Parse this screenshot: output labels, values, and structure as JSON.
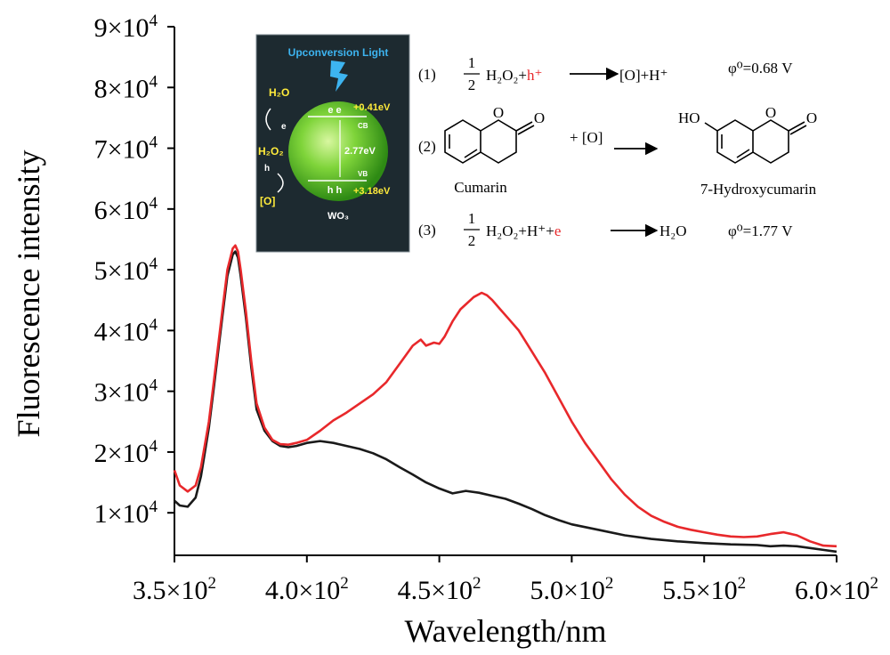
{
  "chart_data": {
    "type": "line",
    "xlabel": "Wavelength/nm",
    "ylabel": "Fluorescence intensity",
    "xlim": [
      350,
      600
    ],
    "ylim": [
      3000,
      90000
    ],
    "x_ticks": [
      350,
      400,
      450,
      500,
      550,
      600
    ],
    "x_tick_labels": [
      {
        "m": "3.5×10",
        "e": "2"
      },
      {
        "m": "4.0×10",
        "e": "2"
      },
      {
        "m": "4.5×10",
        "e": "2"
      },
      {
        "m": "5.0×10",
        "e": "2"
      },
      {
        "m": "5.5×10",
        "e": "2"
      },
      {
        "m": "6.0×10",
        "e": "2"
      }
    ],
    "y_ticks": [
      10000,
      20000,
      30000,
      40000,
      50000,
      60000,
      70000,
      80000,
      90000
    ],
    "y_tick_labels": [
      {
        "m": "1×10",
        "e": "4"
      },
      {
        "m": "2×10",
        "e": "4"
      },
      {
        "m": "3×10",
        "e": "4"
      },
      {
        "m": "4×10",
        "e": "4"
      },
      {
        "m": "5×10",
        "e": "4"
      },
      {
        "m": "6×10",
        "e": "4"
      },
      {
        "m": "7×10",
        "e": "4"
      },
      {
        "m": "8×10",
        "e": "4"
      },
      {
        "m": "9×10",
        "e": "4"
      }
    ],
    "grid": false,
    "series": [
      {
        "color": "#1a1a1a",
        "x": [
          350,
          352,
          355,
          358,
          360,
          363,
          365,
          368,
          370,
          372,
          373,
          374,
          375,
          377,
          379,
          381,
          384,
          387,
          390,
          393,
          396,
          400,
          405,
          410,
          415,
          420,
          425,
          430,
          435,
          440,
          445,
          450,
          455,
          460,
          465,
          470,
          475,
          480,
          485,
          490,
          495,
          500,
          510,
          520,
          530,
          540,
          550,
          560,
          570,
          575,
          580,
          585,
          590,
          595,
          600
        ],
        "y": [
          12000,
          11200,
          11000,
          12500,
          16000,
          24000,
          31000,
          42000,
          49000,
          52500,
          53000,
          52000,
          49000,
          42000,
          34000,
          27000,
          23500,
          21800,
          21000,
          20800,
          21000,
          21500,
          21800,
          21500,
          21000,
          20500,
          19800,
          18800,
          17500,
          16300,
          15000,
          14000,
          13200,
          13600,
          13300,
          12800,
          12300,
          11500,
          10600,
          9600,
          8800,
          8100,
          7200,
          6300,
          5700,
          5300,
          5000,
          4800,
          4700,
          4500,
          4600,
          4500,
          4200,
          3900,
          3600
        ]
      },
      {
        "color": "#e8282b",
        "x": [
          350,
          352,
          355,
          358,
          360,
          363,
          365,
          368,
          370,
          372,
          373,
          374,
          375,
          377,
          379,
          381,
          384,
          387,
          390,
          393,
          396,
          400,
          405,
          410,
          415,
          420,
          425,
          430,
          435,
          440,
          443,
          445,
          448,
          450,
          452,
          455,
          458,
          460,
          463,
          466,
          468,
          470,
          473,
          476,
          480,
          485,
          490,
          495,
          500,
          505,
          510,
          515,
          520,
          525,
          530,
          535,
          540,
          545,
          550,
          555,
          560,
          565,
          570,
          575,
          580,
          585,
          590,
          595,
          600
        ],
        "y": [
          17000,
          14500,
          13500,
          14500,
          17500,
          25000,
          32000,
          43000,
          50000,
          53500,
          54000,
          53000,
          50000,
          43000,
          35000,
          28000,
          24000,
          22000,
          21300,
          21200,
          21500,
          22000,
          23500,
          25200,
          26500,
          28000,
          29500,
          31500,
          34500,
          37500,
          38500,
          37500,
          38000,
          37800,
          39000,
          41500,
          43500,
          44300,
          45500,
          46200,
          45800,
          45000,
          43500,
          42000,
          40000,
          36500,
          33000,
          29000,
          25000,
          21500,
          18500,
          15500,
          13000,
          11000,
          9500,
          8500,
          7700,
          7200,
          6800,
          6400,
          6100,
          6000,
          6100,
          6500,
          6800,
          6300,
          5300,
          4600,
          4500
        ]
      }
    ]
  },
  "inset": {
    "title": "Upconversion Light",
    "h2o": "H₂O",
    "h2o2": "H₂O₂",
    "e_label": "e",
    "h_label": "h",
    "o_label": "[O]",
    "cb_level": "+0.41eV",
    "vb_level": "+3.18eV",
    "gap": "2.77eV",
    "cb": "CB",
    "vb": "VB",
    "electrons": "e   e",
    "holes": "h   h",
    "material": "WO₃"
  },
  "equations": {
    "eq1_num": "(1)",
    "eq2_num": "(2)",
    "eq3_num": "(3)",
    "frac_top": "1",
    "frac_bottom": "2",
    "h2o2": "H₂O₂+",
    "h_plus": "h⁺",
    "eq1_product": "[O]+H⁺",
    "eq1_potential": "φ⁰=0.68 V",
    "plus_o": "+ [O]",
    "ho": "HO",
    "cumarin": "Cumarin",
    "hydroxy": "7-Hydroxycumarin",
    "eq3_reactant": "H₂O₂+H⁺+",
    "e_red": "e",
    "eq3_product": "H₂O",
    "eq3_potential": "φ⁰=1.77 V",
    "o_atom": "O"
  }
}
